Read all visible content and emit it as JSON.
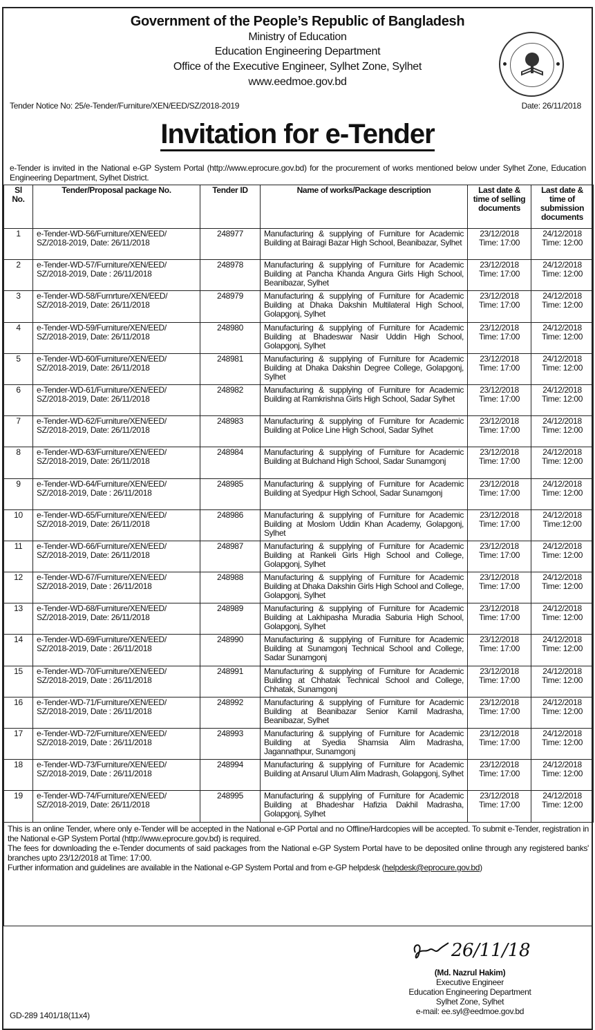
{
  "header": {
    "title": "Government of the People’s Republic of Bangladesh",
    "lines": [
      "Ministry of Education",
      "Education Engineering Department",
      "Office of the Executive Engineer, Sylhet Zone, Sylhet",
      "www.eedmoe.gov.bd"
    ],
    "seal_icon": "education-engineering-department-seal"
  },
  "notice_no": "Tender Notice No: 25/e-Tender/Furniture/XEN/EED/SZ/2018-2019",
  "date": "Date: 26/11/2018",
  "title": "Invitation for e-Tender",
  "intro": "e-Tender is invited in the National e-GP System Portal (http://www.eprocure.gov.bd) for the procurement of works mentioned below under Sylhet Zone, Education Engineering Department, Sylhet District.",
  "table": {
    "headers": [
      "Sl No.",
      "Tender/Proposal package No.",
      "Tender ID",
      "Name of works/Package description",
      "Last date & time of selling documents",
      "Last date & time of submission documents"
    ],
    "rows": [
      [
        "1",
        "e-Tender-WD-56/Furniture/XEN/EED/ SZ/2018-2019, Date: 26/11/2018",
        "248977",
        "Manufacturing & supplying of Furniture for Academic Building at Bairagi Bazar High School, Beanibazar, Sylhet",
        "23/12/2018 Time: 17:00",
        "24/12/2018 Time: 12:00"
      ],
      [
        "2",
        "e-Tender-WD-57/Furniture/XEN/EED/ SZ/2018-2019, Date : 26/11/2018",
        "248978",
        "Manufacturing & supplying of Furniture for Academic Building at Pancha Khanda Angura Girls High School, Beanibazar, Sylhet",
        "23/12/2018 Time: 17:00",
        "24/12/2018 Time: 12:00"
      ],
      [
        "3",
        "e-Tender-WD-58/Furnrture/XEN/EED/ SZ/2018-2019, Date: 26/11/2018",
        "248979",
        "Manufacturing & supplying of Furniture for Academic Building at Dhaka Dakshin Multilateral High School, Golapgonj, Sylhet",
        "23/12/2018 Time: 17:00",
        "24/12/2018 Time: 12:00"
      ],
      [
        "4",
        "e-Tender-WD-59/Furniture/XEN/EED/ SZ/2018-2019, Date: 26/11/2018",
        "248980",
        "Manufacturing & supplying of Furniture for Academic Building at Bhadeswar Nasir Uddin High School, Golapgonj, Sylhet",
        "23/12/2018 Time: 17:00",
        "24/12/2018 Time: 12:00"
      ],
      [
        "5",
        "e-Tender-WD-60/Furniture/XEN/EED/ SZ/2018-2019, Date: 26/11/2018",
        "248981",
        "Manufacturing & supplying of Furniture for Academic Building at Dhaka Dakshin Degree College, Golapgonj, Sylhet",
        "23/12/2018 Time: 17:00",
        "24/12/2018 Time: 12:00"
      ],
      [
        "6",
        "e-Tender-WD-61/Furniture/XEN/EED/ SZ/2018-2019, Date: 26/11/2018",
        "248982",
        "Manufacturing & supplying of Furniture for Academic Building at Ramkrishna Girls High School, Sadar Sylhet",
        "23/12/2018 Time: 17:00",
        "24/12/2018 Time: 12:00"
      ],
      [
        "7",
        "e-Tender-WD-62/Furniture/XEN/EED/ SZ/2018-2019, Date: 26/11/2018",
        "248983",
        "Manufacturing & supplying of Furniture for Academic Building at Police Line High School, Sadar Sylhet",
        "23/12/2018 Time: 17:00",
        "24/12/2018 Time: 12:00"
      ],
      [
        "8",
        "e-Tender-WD-63/Furniture/XEN/EED/ SZ/2018-2019, Date: 26/11/2018",
        "248984",
        "Manufacturing & supplying of Furniture for Academic Building at Bulchand High School, Sadar Sunamgonj",
        "23/12/2018 Time: 17:00",
        "24/12/2018 Time: 12:00"
      ],
      [
        "9",
        "e-Tender-WD-64/Furniture/XEN/EED/ SZ/2018-2019, Date : 26/11/2018",
        "248985",
        "Manufacturing & supplying of Furniture for Academic Building at Syedpur High School, Sadar Sunamgonj",
        "23/12/2018 Time: 17:00",
        "24/12/2018 Time: 12:00"
      ],
      [
        "10",
        "e-Tender-WD-65/Furniture/XEN/EED/ SZ/2018-2019, Date: 26/11/2018",
        "248986",
        "Manufacturing & supplying of Furniture for Academic Building at Moslom Uddin Khan Academy, Golapgonj, Sylhet",
        "23/12/2018 Time: 17:00",
        "24/12/2018 Time:12:00"
      ],
      [
        "11",
        "e-Tender-WD-66/Furniture/XEN/EED/ SZ/2018-2019, Date: 26/11/2018",
        "248987",
        "Manufacturing & supplying of Furniture for Academic Building at Rankeli Girls High School and College, Golapgonj, Sylhet",
        "23/12/2018 Time: 17:00",
        "24/12/2018 Time: 12:00"
      ],
      [
        "12",
        "e-Tender-WD-67/Furniture/XEN/EED/ SZ/2018-2019, Date : 26/11/2018",
        "248988",
        "Manufacturing & supplying of Furniture for Academic Building at Dhaka Dakshin Girls High School and College, Golapgonj, Sylhet",
        "23/12/2018 Time: 17:00",
        "24/12/2018 Time: 12:00"
      ],
      [
        "13",
        "e-Tender-WD-68/Furniture/XEN/EED/ SZ/2018-2019, Date: 26/11/2018",
        "248989",
        "Manufacturing & supplying of Furniture for Academic Building at Lakhipasha Muradia Saburia High School, Golapgonj, Sylhet",
        "23/12/2018 Time: 17:00",
        "24/12/2018 Time: 12:00"
      ],
      [
        "14",
        "e-Tender-WD-69/Furniture/XEN/EED/ SZ/2018-2019, Date : 26/11/2018",
        "248990",
        "Manufacturing & supplying of Furniture for Academic Building at Sunamgonj Technical School and College, Sadar Sunamgonj",
        "23/12/2018 Time: 17:00",
        "24/12/2018 Time: 12:00"
      ],
      [
        "15",
        "e-Tender-WD-70/Furniture/XEN/EED/ SZ/2018-2019, Date : 26/11/2018",
        "248991",
        "Manufacturing & supplying of Furniture for Academic Building at Chhatak Technical School and College, Chhatak, Sunamgonj",
        "23/12/2018 Time: 17:00",
        "24/12/2018 Time: 12:00"
      ],
      [
        "16",
        "e-Tender-WD-71/Furniture/XEN/EED/ SZ/2018-2019, Date : 26/11/2018",
        "248992",
        "Manufacturing & supplying of Furniture for Academic Building at Beanibazar Senior Kamil Madrasha, Beanibazar, Sylhet",
        "23/12/2018 Time: 17:00",
        "24/12/2018 Time: 12:00"
      ],
      [
        "17",
        "e-Tender-WD-72/Furniture/XEN/EED/ SZ/2018-2019, Date : 26/11/2018",
        "248993",
        "Manufacturing & supplying of Furniture for Academic Building at Syedia Shamsia Alim Madrasha, Jagannathpur, Sunamgonj",
        "23/12/2018 Time: 17:00",
        "24/12/2018 Time: 12:00"
      ],
      [
        "18",
        "e-Tender-WD-73/Furniture/XEN/EED/ SZ/2018-2019, Date : 26/11/2018",
        "248994",
        "Manufacturing & supplying of Furniture for Academic Building at Ansarul Ulum Alim Madrash, Golapgonj, Sylhet",
        "23/12/2018 Time: 17:00",
        "24/12/2018 Time: 12:00"
      ],
      [
        "19",
        "e-Tender-WD-74/Furniture/XEN/EED/ SZ/2018-2019, Date: 26/11/2018",
        "248995",
        "Manufacturing & supplying of Furniture for Academic Building at Bhadeshar Hafizia Dakhil Madrasha, Golapgonj, Sylhet",
        "23/12/2018 Time: 17:00",
        "24/12/2018 Time: 12:00"
      ]
    ]
  },
  "notes": {
    "p1": "This is an online Tender, where only e-Tender will be accepted in the National e-GP Portal and no Offline/Hardcopies will be accepted. To submit e-Tender, registration in the National e-GP System Portal (http://www.eprocure.gov.bd) is required.",
    "p2": "The fees for downloading the e-Tender documents of said packages from the National e-GP System Portal have to be deposited online through any registered banks' branches upto 23/12/2018 at Time: 17:00.",
    "p3": "Further information and guidelines are available in the National e-GP System Portal and from e-GP helpdesk (",
    "p3_link": "helpdesk@eprocure.gov.bd",
    "p3_end": ")"
  },
  "signature": {
    "handwriting": "26/11/18",
    "name": "(Md. Nazrul Hakim)",
    "designation": "Executive Engineer",
    "department": "Education Engineering Department",
    "zone": "Sylhet Zone, Sylhet",
    "email": "e-mail: ee.syl@eedmoe.gov.bd"
  },
  "footer_code": "GD-289 1401/18(11x4)"
}
